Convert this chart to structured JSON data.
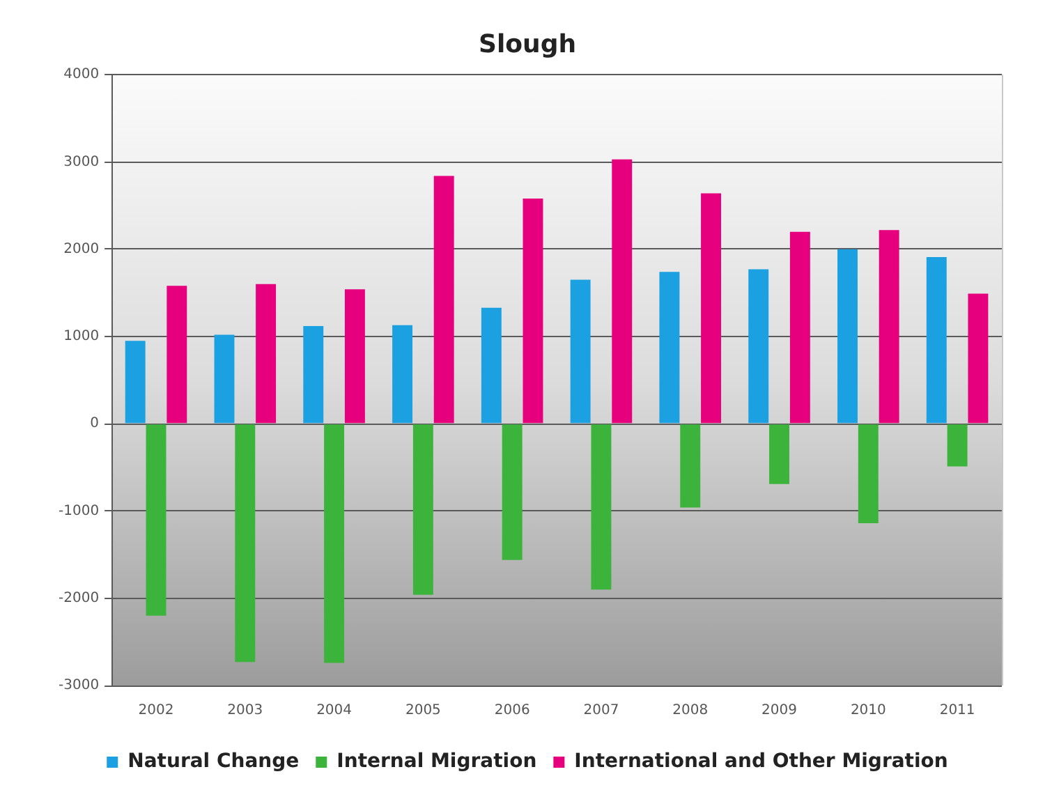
{
  "chart_data": {
    "type": "bar",
    "title": "Slough",
    "categories": [
      "2002",
      "2003",
      "2004",
      "2005",
      "2006",
      "2007",
      "2008",
      "2009",
      "2010",
      "2011"
    ],
    "series": [
      {
        "name": "Natural Change",
        "color": "#1ba1e2",
        "values": [
          950,
          1020,
          1120,
          1130,
          1330,
          1650,
          1740,
          1770,
          2000,
          1910
        ]
      },
      {
        "name": "Internal Migration",
        "color": "#3cb43c",
        "values": [
          -2200,
          -2730,
          -2740,
          -1960,
          -1560,
          -1900,
          -960,
          -690,
          -1140,
          -490
        ]
      },
      {
        "name": "International and Other Migration",
        "color": "#e6007e",
        "values": [
          1580,
          1600,
          1540,
          2840,
          2580,
          3030,
          2640,
          2200,
          2220,
          1490
        ]
      }
    ],
    "ylim": [
      -3000,
      4000
    ],
    "yticks": [
      -3000,
      -2000,
      -1000,
      0,
      1000,
      2000,
      3000,
      4000
    ],
    "grid": "y",
    "legend": "bottom"
  }
}
